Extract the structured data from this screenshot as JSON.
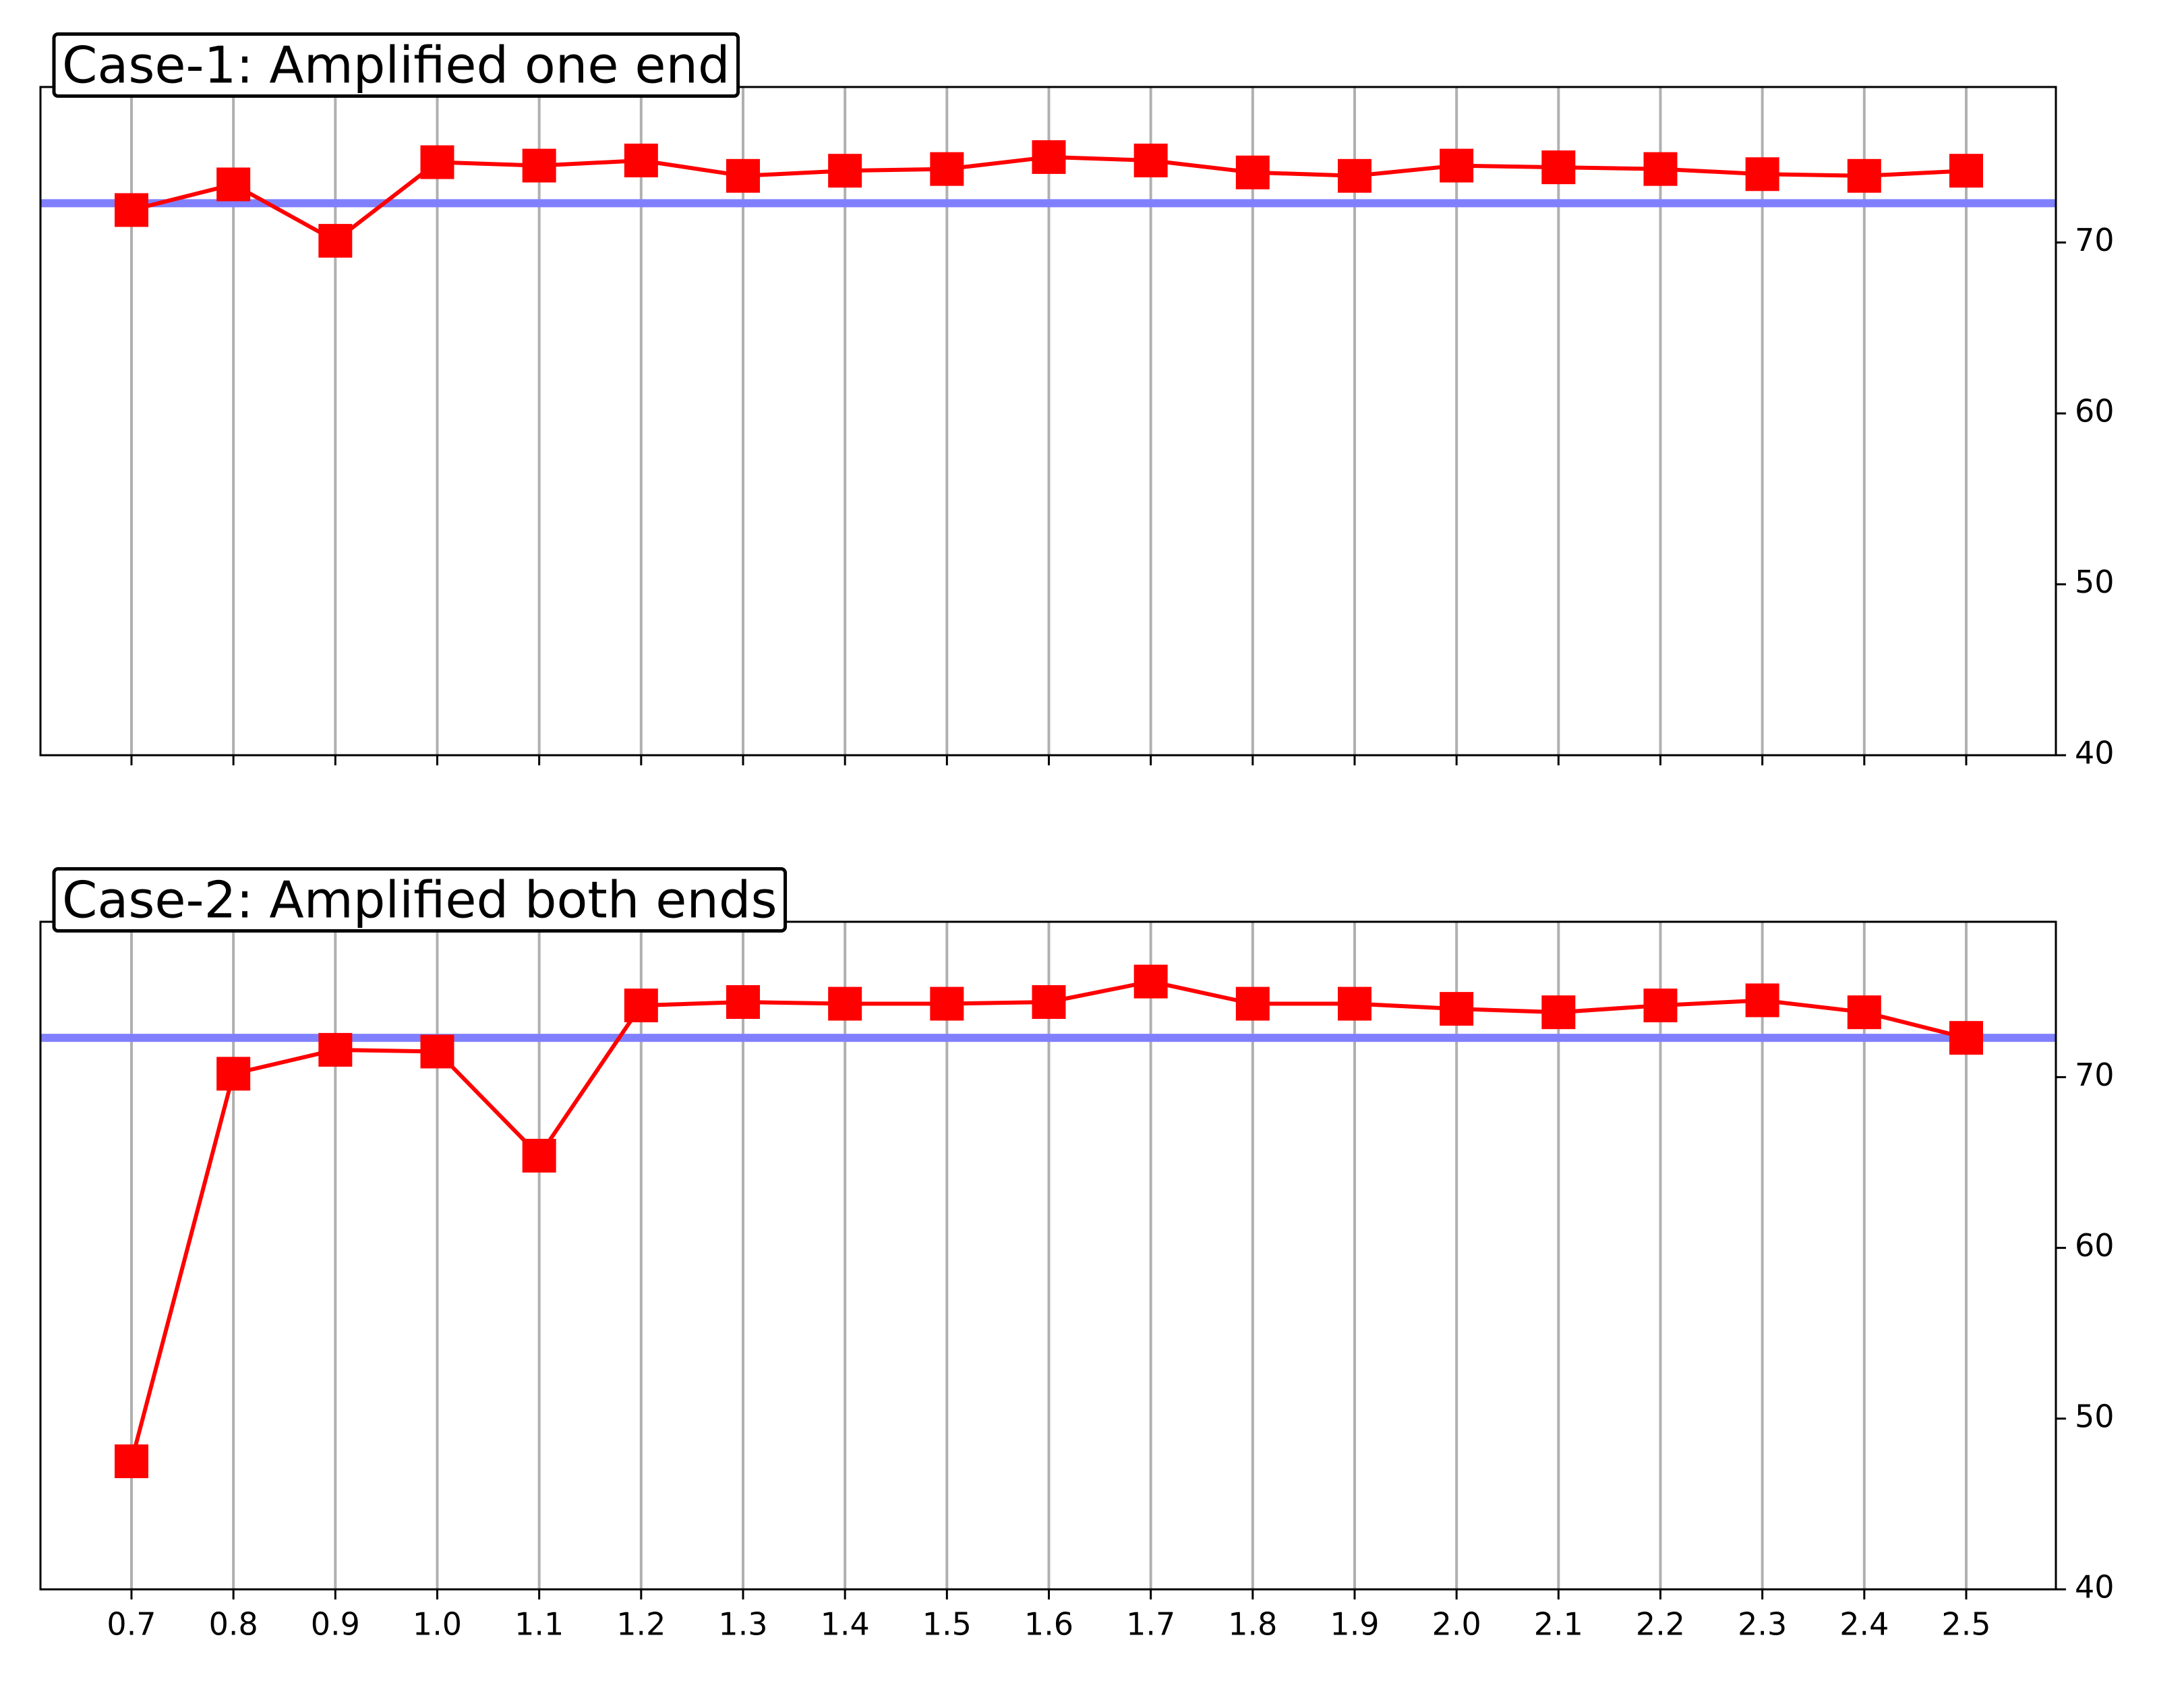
{
  "chart_data": [
    {
      "type": "line",
      "title": "Case-1: Amplified one end",
      "values": [
        71.9,
        73.4,
        70.1,
        74.7,
        74.5,
        74.8,
        73.9,
        74.2,
        74.3,
        75.0,
        74.8,
        74.1,
        73.9,
        74.5,
        74.4,
        74.3,
        74.0,
        73.9,
        74.2
      ],
      "color": "#ff0000",
      "reference_line": {
        "value": 72.3,
        "color": "#8080ff"
      },
      "ylim": [
        40,
        79.1
      ],
      "yticks": [
        40,
        50,
        60,
        70
      ],
      "grid": true,
      "y_axis_side": "right",
      "show_xticklabels": false
    },
    {
      "type": "line",
      "title": "Case-2: Amplified both ends",
      "categories": [
        "0.7",
        "0.8",
        "0.9",
        "1.0",
        "1.1",
        "1.2",
        "1.3",
        "1.4",
        "1.5",
        "1.6",
        "1.7",
        "1.8",
        "1.9",
        "2.0",
        "2.1",
        "2.2",
        "2.3",
        "2.4",
        "2.5"
      ],
      "values": [
        47.5,
        70.2,
        71.6,
        71.5,
        65.4,
        74.2,
        74.4,
        74.3,
        74.3,
        74.4,
        75.6,
        74.3,
        74.3,
        74.0,
        73.8,
        74.2,
        74.5,
        73.8,
        72.3
      ],
      "color": "#ff0000",
      "reference_line": {
        "value": 72.3,
        "color": "#8080ff"
      },
      "ylim": [
        40,
        79.1
      ],
      "yticks": [
        40,
        50,
        60,
        70
      ],
      "grid": true,
      "y_axis_side": "right",
      "show_xticklabels": true
    }
  ]
}
